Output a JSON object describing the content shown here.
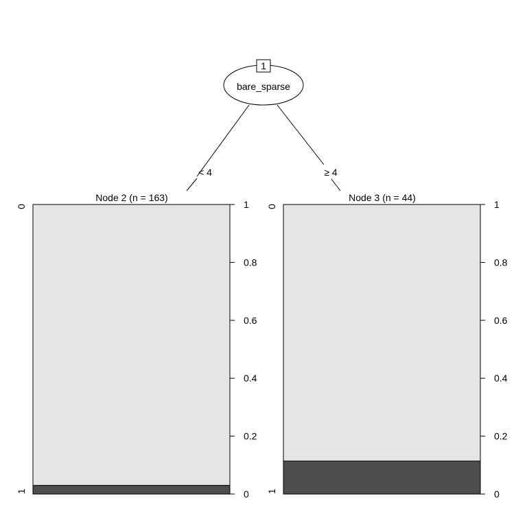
{
  "chart_data": {
    "type": "decision-tree",
    "root": {
      "id": "1",
      "variable": "bare_sparse"
    },
    "edges": [
      {
        "to_node": "2",
        "label": "< 4"
      },
      {
        "to_node": "3",
        "label": "≥ 4"
      }
    ],
    "terminal_nodes": [
      {
        "node": "2",
        "title": "Node 2 (n = 163)",
        "n": 163,
        "classes": [
          "0",
          "1"
        ],
        "proportions": {
          "0": 0.97,
          "1": 0.03
        }
      },
      {
        "node": "3",
        "title": "Node 3 (n = 44)",
        "n": 44,
        "classes": [
          "0",
          "1"
        ],
        "proportions": {
          "0": 0.886,
          "1": 0.114
        }
      }
    ],
    "axis_ticks": [
      "0",
      "0.2",
      "0.4",
      "0.6",
      "0.8",
      "1"
    ],
    "ylim": [
      0,
      1
    ],
    "colors": {
      "class_0": "#e5e5e5",
      "class_1": "#4d4d4d"
    }
  }
}
